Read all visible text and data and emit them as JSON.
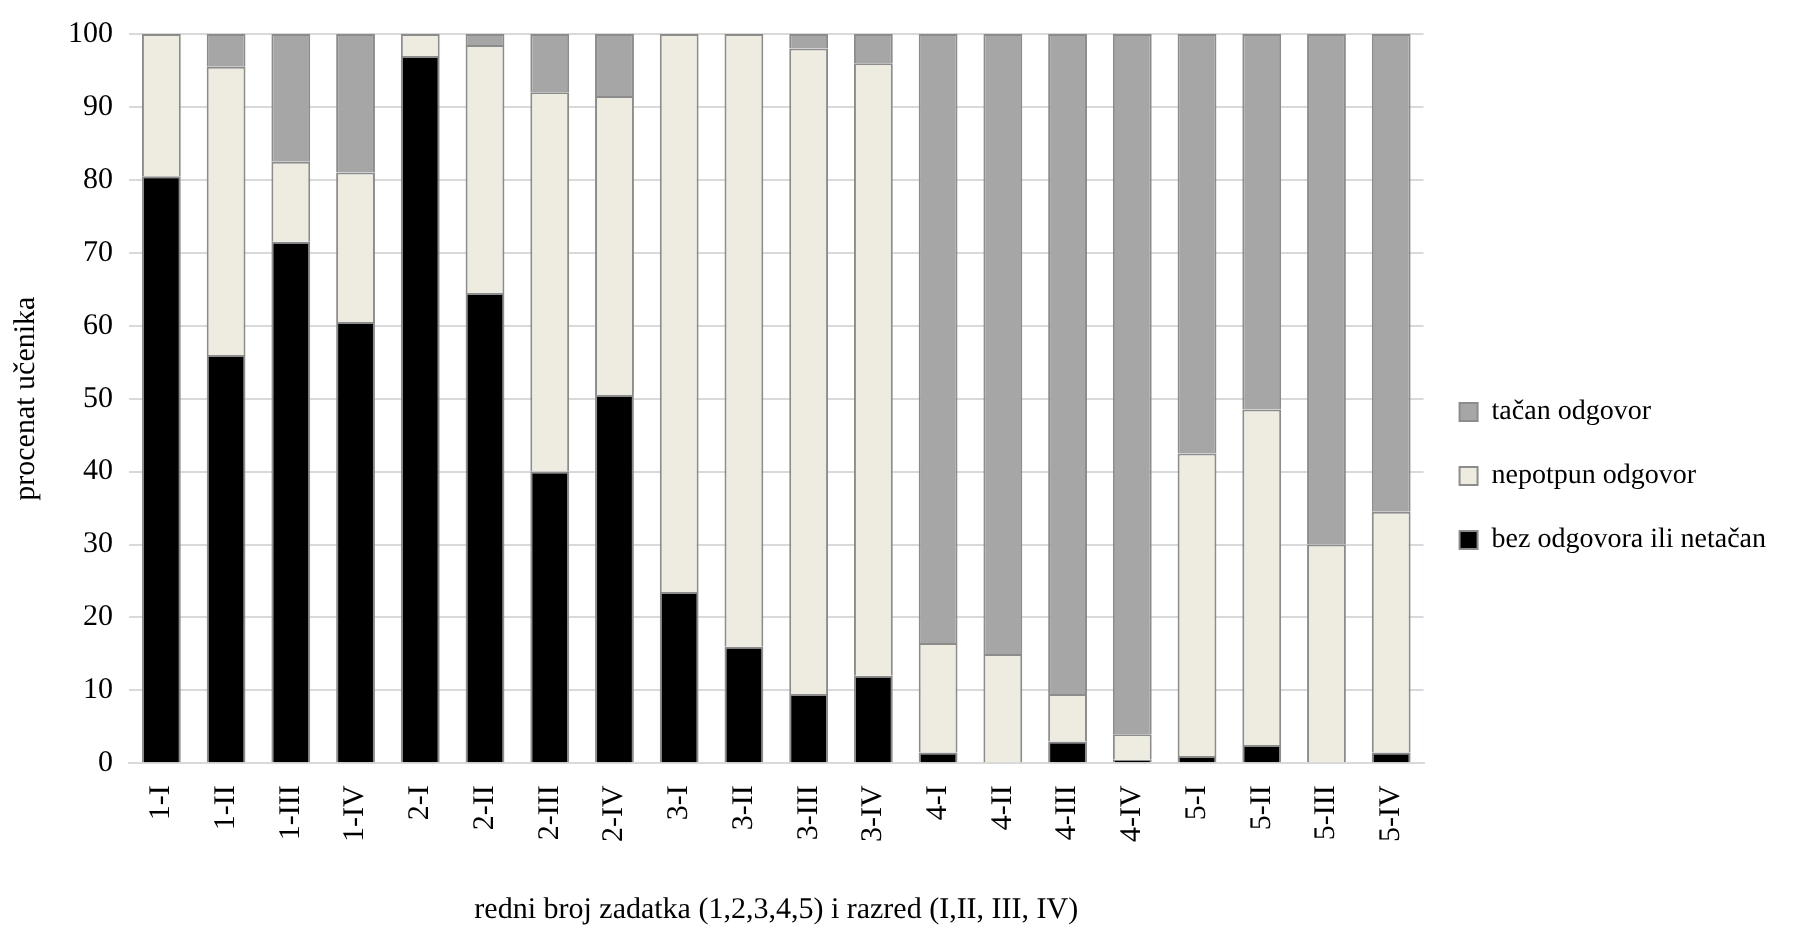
{
  "chart_data": {
    "type": "bar",
    "stacked": true,
    "xlabel": "redni broj zadatka (1,2,3,4,5) i razred (I,II, III, IV)",
    "ylabel": "procenat učenika",
    "categories": [
      "1-I",
      "1-II",
      "1-III",
      "1-IV",
      "2-I",
      "2-II",
      "2-III",
      "2-IV",
      "3-I",
      "3-II",
      "3-III",
      "3-IV",
      "4-I",
      "4-II",
      "4-III",
      "4-IV",
      "5-I",
      "5-II",
      "5-III",
      "5-IV"
    ],
    "series": [
      {
        "name": "bez odgovora ili netačan",
        "color": "#000000",
        "values": [
          80.5,
          56,
          71.5,
          60.5,
          97,
          64.5,
          40,
          50.5,
          23.5,
          16,
          9.5,
          12,
          1.5,
          0,
          3,
          0.5,
          1,
          2.5,
          0,
          1.5
        ]
      },
      {
        "name": "nepotpun odgovor",
        "color": "#eeece1",
        "values": [
          19.5,
          39.5,
          11,
          20.5,
          3,
          34,
          52,
          41,
          76.5,
          84,
          88.5,
          84,
          15,
          15,
          6.5,
          3.5,
          41.5,
          46,
          30,
          33
        ]
      },
      {
        "name": "tačan odgovor",
        "color": "#a6a6a6",
        "values": [
          0,
          4.5,
          17.5,
          19,
          0,
          1.5,
          8,
          8.5,
          0,
          0,
          2,
          4,
          83.5,
          85,
          90.5,
          96,
          57.5,
          51.5,
          70,
          65.5
        ]
      }
    ],
    "ylim": [
      0,
      100
    ],
    "yticks": [
      0,
      10,
      20,
      30,
      40,
      50,
      60,
      70,
      80,
      90,
      100
    ],
    "grid": "y",
    "legend": "right"
  }
}
